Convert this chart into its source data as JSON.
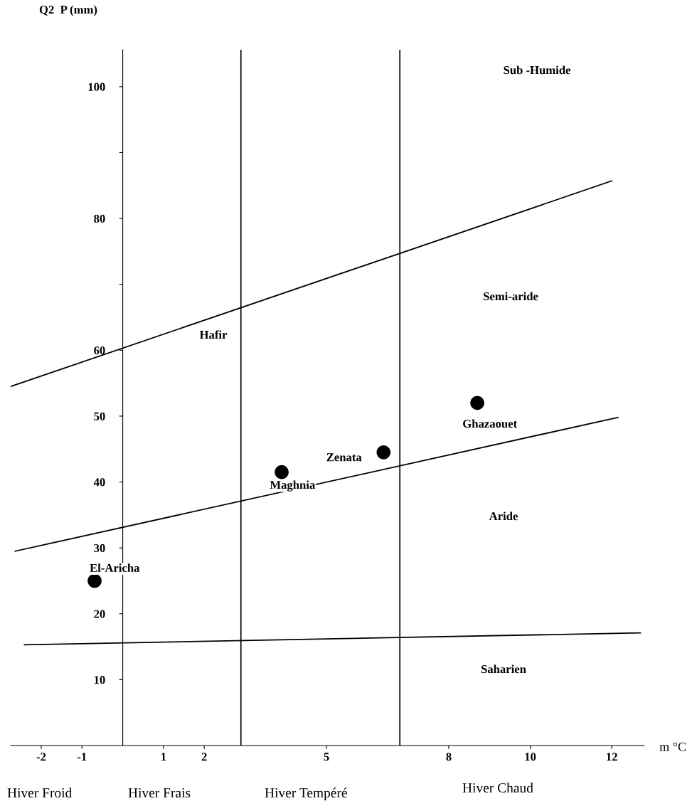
{
  "chart_data": {
    "type": "scatter",
    "xlabel": "m °C",
    "ylabel": "Q2  P (mm)",
    "xlim": [
      -2.75,
      12.8
    ],
    "ylim": [
      0,
      105.6
    ],
    "xticks": [
      -2,
      -1,
      1,
      2,
      5,
      8,
      10,
      12
    ],
    "yticks": [
      10,
      20,
      30,
      40,
      50,
      60,
      {
        "value": 70,
        "label": null
      },
      80,
      {
        "value": 90,
        "label": null
      },
      100
    ],
    "grid": false,
    "series": [
      {
        "marker": "circle",
        "color": "#000000",
        "x": [
          -0.69,
          3.9,
          6.4,
          8.7
        ],
        "values": [
          25.0,
          41.5,
          44.5,
          52.0
        ],
        "value_labels": [
          "El-Aricha",
          "Maghnia",
          "Zenata",
          "Ghazaouet"
        ]
      },
      {
        "type": "line",
        "color": "#000000",
        "x": [
          -2.75,
          12.0
        ],
        "values": [
          54.5,
          85.7
        ]
      },
      {
        "type": "line",
        "color": "#000000",
        "x": [
          -2.64,
          12.15
        ],
        "values": [
          29.5,
          49.8
        ]
      },
      {
        "type": "line",
        "color": "#000000",
        "x": [
          -2.41,
          12.7
        ],
        "values": [
          15.3,
          17.1
        ]
      }
    ],
    "ref_lines": [
      {
        "axis": "x",
        "value": 2.9,
        "color": "#000000"
      },
      {
        "axis": "x",
        "value": 6.8,
        "color": "#000000"
      }
    ],
    "annotations": [
      "Hafir",
      "Sub -Humide",
      "Semi-aride",
      "Aride",
      "Saharien",
      "Hiver Froid",
      "Hiver Frais",
      "Hiver Tempéré",
      "Hiver Chaud"
    ]
  }
}
